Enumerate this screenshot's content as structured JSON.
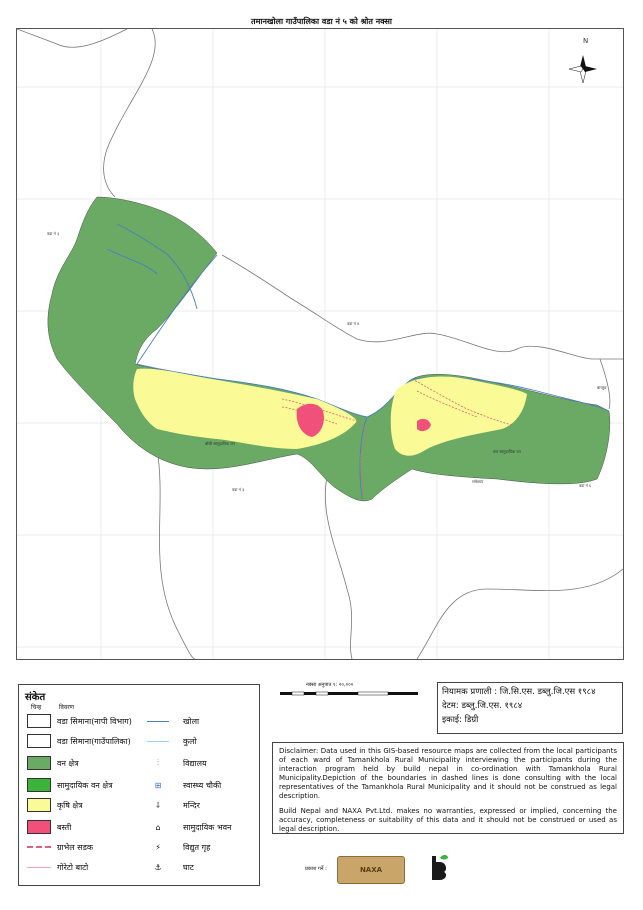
{
  "map": {
    "title": "तमानखोला गाउँपालिका वडा नं ५ को श्रोत नक्सा",
    "ward_labels": {
      "w1": "वडा नं ३",
      "w2": "वडा नं ४",
      "w3": "वडा नं ३",
      "w4": "वडा नं ६",
      "other": "बाग्लुङ"
    },
    "forest_labels": {
      "f1": "बाँसी सामुदायिक वन",
      "f2": "धार सामुदायिक वन",
      "f3": "रामेछाप"
    },
    "north_label": "N",
    "colors": {
      "forest": "#6aaa64",
      "community_forest": "#3cb43c",
      "agriculture": "#fafa96",
      "settlement": "#f0507a",
      "river": "#4a7fc0",
      "boundary": "#777777"
    }
  },
  "legend": {
    "title": "संकेत",
    "col_symbol": "चिन्ह",
    "col_desc": "विवरण",
    "left_items": [
      {
        "label": "वडा सिमाना(नापी विभाग)"
      },
      {
        "label": "वडा सिमाना(गाउँपालिका)"
      },
      {
        "label": "वन क्षेत्र"
      },
      {
        "label": "सामुदायिक वन क्षेत्र"
      },
      {
        "label": "कृषि क्षेत्र"
      },
      {
        "label": "बस्ती"
      },
      {
        "label": "ग्राभेल सडक"
      },
      {
        "label": "गोरेटो बाटो"
      }
    ],
    "right_items": [
      {
        "label": "खोला",
        "icon": "river-line-icon"
      },
      {
        "label": "कुलो",
        "icon": "canal-line-icon"
      },
      {
        "label": "विद्यालय",
        "icon": "school-icon"
      },
      {
        "label": "स्वास्थ्य चौकी",
        "icon": "health-post-icon"
      },
      {
        "label": "मन्दिर",
        "icon": "temple-icon"
      },
      {
        "label": "सामुदायिक भवन",
        "icon": "community-building-icon"
      },
      {
        "label": "विद्युत गृह",
        "icon": "power-house-icon"
      },
      {
        "label": "घाट",
        "icon": "ghat-icon"
      }
    ]
  },
  "scale": {
    "text": "नक्सा अनुपात १: २०,०००"
  },
  "projection": {
    "line1": "नियामक प्रणाली : जि.सि.एस. डब्लु.जि.एस १९८४",
    "line2": "देटम: डब्लु.जि.एस. १९८४",
    "line3": "इकाई: डिग्री"
  },
  "disclaimer": {
    "p1": "Disclaimer: Data used in this GIS-based resource maps are collected from the local participants of each ward of Tamankhola Rural Municipality interviewing the participants during the interaction program held by build nepal in co-ordination with Tamankhola Rural Municipality.Depiction of the boundaries in dashed lines is done consulting with the local representatives of the Tamankhola Rural Municipality and it should not be construed as legal description. ",
    "p2": "Build Nepal and NAXA Pvt.Ltd. makes no warranties, expressed or implied, concerning the accuracy, completeness or suitability of this data and it should not be construed or used as legal description."
  },
  "logos": {
    "label": "प्रकाश गर्ने :",
    "naxa": "NAXA"
  }
}
